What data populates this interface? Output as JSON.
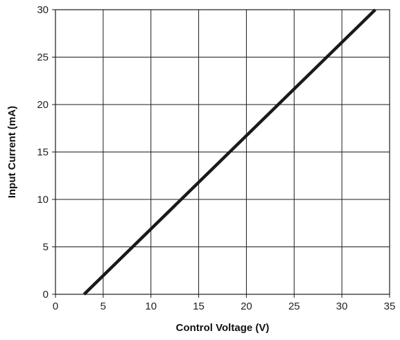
{
  "chart_data": {
    "type": "line",
    "title": "",
    "xlabel": "Control Voltage (V)",
    "ylabel": "Input Current (mA)",
    "xlim": [
      0,
      35
    ],
    "ylim": [
      0,
      30
    ],
    "xticks": [
      "0",
      "5",
      "10",
      "15",
      "20",
      "25",
      "30",
      "35"
    ],
    "yticks": [
      "0",
      "5",
      "10",
      "15",
      "20",
      "25",
      "30"
    ],
    "grid": true,
    "legend": "none",
    "series": [
      {
        "x": [
          3,
          33.5
        ],
        "y": [
          0,
          30
        ],
        "color": "#1a1a1a"
      }
    ]
  }
}
